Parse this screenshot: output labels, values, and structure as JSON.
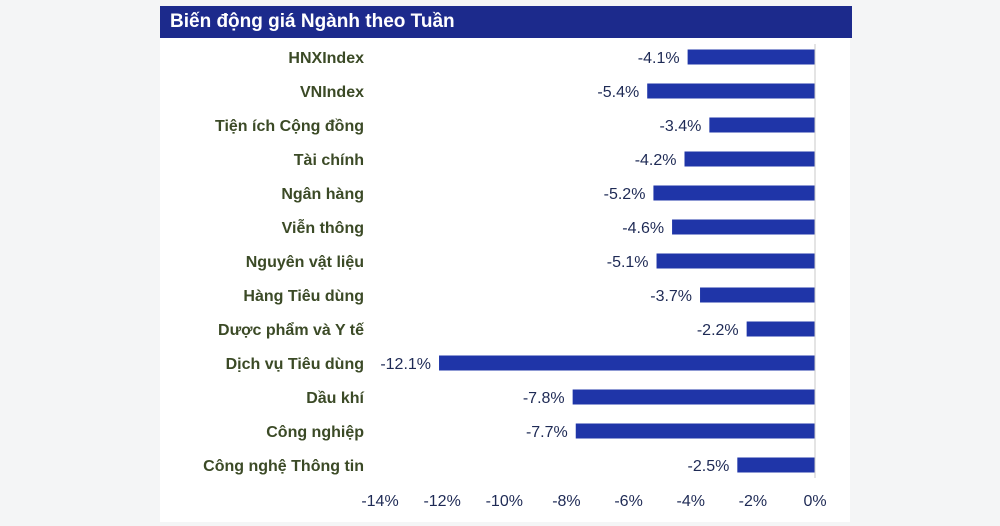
{
  "title": "Biến động giá Ngành theo Tuần",
  "colors": {
    "bar": "#1f35a8",
    "category_text": "#3b4a26",
    "value_text": "#1e2a55",
    "title_bg": "#1c2a8c",
    "title_text": "#ffffff"
  },
  "chart_data": {
    "type": "bar",
    "orientation": "horizontal",
    "title": "Biến động giá Ngành theo Tuần",
    "xlabel": "",
    "ylabel": "",
    "xlim": [
      -14,
      0
    ],
    "x_ticks": [
      "-14%",
      "-12%",
      "-10%",
      "-8%",
      "-6%",
      "-4%",
      "-2%",
      "0%"
    ],
    "grid": false,
    "legend": "none",
    "categories": [
      "HNXIndex",
      "VNIndex",
      "Tiện ích Cộng đồng",
      "Tài chính",
      "Ngân hàng",
      "Viễn thông",
      "Nguyên vật liệu",
      "Hàng Tiêu dùng",
      "Dược phẩm và Y tế",
      "Dịch vụ Tiêu dùng",
      "Dầu khí",
      "Công nghiệp",
      "Công nghệ Thông tin"
    ],
    "values": [
      -4.1,
      -5.4,
      -3.4,
      -4.2,
      -5.2,
      -4.6,
      -5.1,
      -3.7,
      -2.2,
      -12.1,
      -7.8,
      -7.7,
      -2.5
    ],
    "value_labels": [
      "-4.1%",
      "-5.4%",
      "-3.4%",
      "-4.2%",
      "-5.2%",
      "-4.6%",
      "-5.1%",
      "-3.7%",
      "-2.2%",
      "-12.1%",
      "-7.8%",
      "-7.7%",
      "-2.5%"
    ]
  }
}
